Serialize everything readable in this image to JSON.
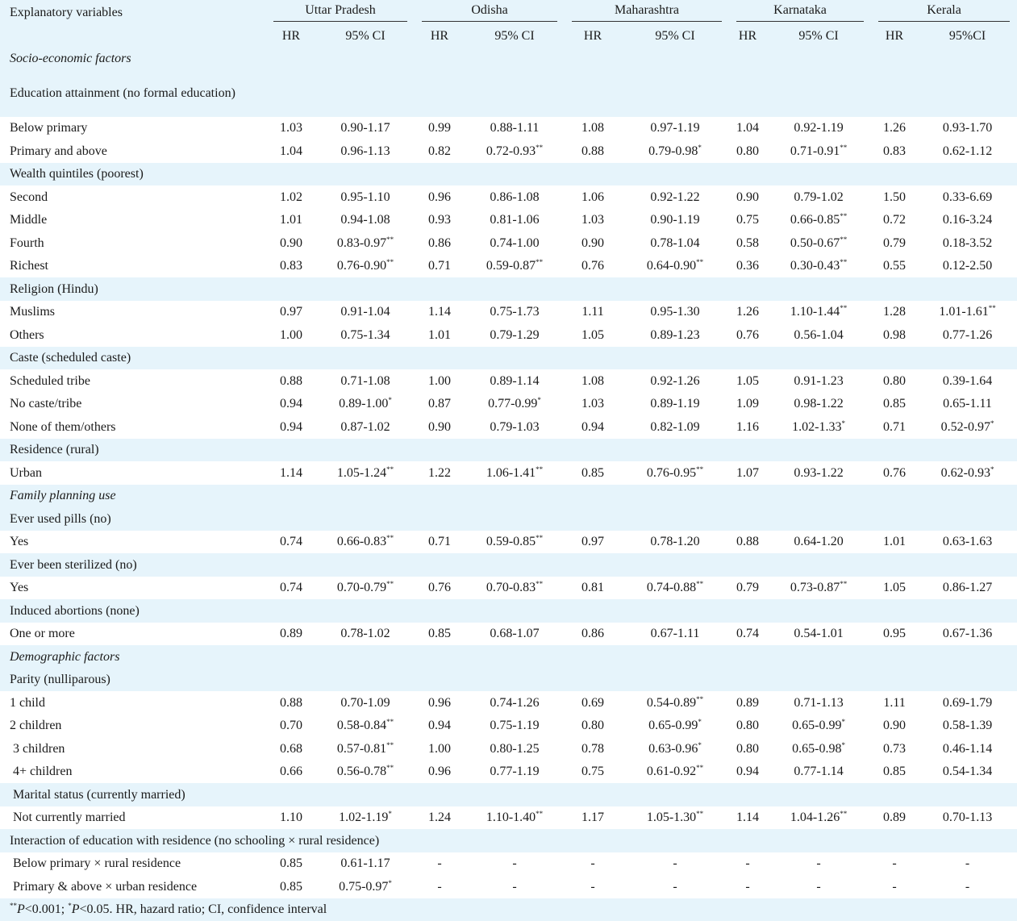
{
  "header": {
    "variables_label": "Explanatory variables",
    "states": [
      "Uttar Pradesh",
      "Odisha",
      "Maharashtra",
      "Karnataka",
      "Kerala"
    ],
    "sub_hr": "HR",
    "sub_ci": [
      "95% CI",
      "95% CI",
      "95% CI",
      "95% CI",
      "95%CI"
    ]
  },
  "rows": [
    {
      "type": "section",
      "label": "Socio-economic factors",
      "band": "blue"
    },
    {
      "type": "group",
      "label": "Education attainment (no formal education)",
      "band": "blue",
      "wrap": true
    },
    {
      "type": "data",
      "label": "Below primary",
      "band": "white",
      "cells": [
        [
          "1.03",
          "0.90-1.17",
          ""
        ],
        [
          "0.99",
          "0.88-1.11",
          ""
        ],
        [
          "1.08",
          "0.97-1.19",
          ""
        ],
        [
          "1.04",
          "0.92-1.19",
          ""
        ],
        [
          "1.26",
          "0.93-1.70",
          ""
        ]
      ]
    },
    {
      "type": "data",
      "label": "Primary and above",
      "band": "white",
      "cells": [
        [
          "1.04",
          "0.96-1.13",
          ""
        ],
        [
          "0.82",
          "0.72-0.93",
          "**"
        ],
        [
          "0.88",
          "0.79-0.98",
          "*"
        ],
        [
          "0.80",
          "0.71-0.91",
          "**"
        ],
        [
          "0.83",
          "0.62-1.12",
          ""
        ]
      ]
    },
    {
      "type": "group",
      "label": "Wealth quintiles (poorest)",
      "band": "blue"
    },
    {
      "type": "data",
      "label": "Second",
      "band": "white",
      "cells": [
        [
          "1.02",
          "0.95-1.10",
          ""
        ],
        [
          "0.96",
          "0.86-1.08",
          ""
        ],
        [
          "1.06",
          "0.92-1.22",
          ""
        ],
        [
          "0.90",
          "0.79-1.02",
          ""
        ],
        [
          "1.50",
          "0.33-6.69",
          ""
        ]
      ]
    },
    {
      "type": "data",
      "label": "Middle",
      "band": "white",
      "cells": [
        [
          "1.01",
          "0.94-1.08",
          ""
        ],
        [
          "0.93",
          "0.81-1.06",
          ""
        ],
        [
          "1.03",
          "0.90-1.19",
          ""
        ],
        [
          "0.75",
          "0.66-0.85",
          "**"
        ],
        [
          "0.72",
          "0.16-3.24",
          ""
        ]
      ]
    },
    {
      "type": "data",
      "label": "Fourth",
      "band": "white",
      "cells": [
        [
          "0.90",
          "0.83-0.97",
          "**"
        ],
        [
          "0.86",
          "0.74-1.00",
          ""
        ],
        [
          "0.90",
          "0.78-1.04",
          ""
        ],
        [
          "0.58",
          "0.50-0.67",
          "**"
        ],
        [
          "0.79",
          "0.18-3.52",
          ""
        ]
      ]
    },
    {
      "type": "data",
      "label": "Richest",
      "band": "white",
      "cells": [
        [
          "0.83",
          "0.76-0.90",
          "**"
        ],
        [
          "0.71",
          "0.59-0.87",
          "**"
        ],
        [
          "0.76",
          "0.64-0.90",
          "**"
        ],
        [
          "0.36",
          "0.30-0.43",
          "**"
        ],
        [
          "0.55",
          "0.12-2.50",
          ""
        ]
      ]
    },
    {
      "type": "group",
      "label": "Religion (Hindu)",
      "band": "blue"
    },
    {
      "type": "data",
      "label": "Muslims",
      "band": "white",
      "cells": [
        [
          "0.97",
          "0.91-1.04",
          ""
        ],
        [
          "1.14",
          "0.75-1.73",
          ""
        ],
        [
          "1.11",
          "0.95-1.30",
          ""
        ],
        [
          "1.26",
          "1.10-1.44",
          "**"
        ],
        [
          "1.28",
          "1.01-1.61",
          "**"
        ]
      ]
    },
    {
      "type": "data",
      "label": "Others",
      "band": "white",
      "cells": [
        [
          "1.00",
          "0.75-1.34",
          ""
        ],
        [
          "1.01",
          "0.79-1.29",
          ""
        ],
        [
          "1.05",
          "0.89-1.23",
          ""
        ],
        [
          "0.76",
          "0.56-1.04",
          ""
        ],
        [
          "0.98",
          "0.77-1.26",
          ""
        ]
      ]
    },
    {
      "type": "group",
      "label": "Caste (scheduled caste)",
      "band": "blue"
    },
    {
      "type": "data",
      "label": "Scheduled tribe",
      "band": "white",
      "cells": [
        [
          "0.88",
          "0.71-1.08",
          ""
        ],
        [
          "1.00",
          "0.89-1.14",
          ""
        ],
        [
          "1.08",
          "0.92-1.26",
          ""
        ],
        [
          "1.05",
          "0.91-1.23",
          ""
        ],
        [
          "0.80",
          "0.39-1.64",
          ""
        ]
      ]
    },
    {
      "type": "data",
      "label": "No caste/tribe",
      "band": "white",
      "cells": [
        [
          "0.94",
          "0.89-1.00",
          "*"
        ],
        [
          "0.87",
          "0.77-0.99",
          "*"
        ],
        [
          "1.03",
          "0.89-1.19",
          ""
        ],
        [
          "1.09",
          "0.98-1.22",
          ""
        ],
        [
          "0.85",
          "0.65-1.11",
          ""
        ]
      ]
    },
    {
      "type": "data",
      "label": "None of them/others",
      "band": "white",
      "cells": [
        [
          "0.94",
          "0.87-1.02",
          ""
        ],
        [
          "0.90",
          "0.79-1.03",
          ""
        ],
        [
          "0.94",
          "0.82-1.09",
          ""
        ],
        [
          "1.16",
          "1.02-1.33",
          "*"
        ],
        [
          "0.71",
          "0.52-0.97",
          "*"
        ]
      ]
    },
    {
      "type": "group",
      "label": "Residence (rural)",
      "band": "blue"
    },
    {
      "type": "data",
      "label": "Urban",
      "band": "white",
      "cells": [
        [
          "1.14",
          "1.05-1.24",
          "**"
        ],
        [
          "1.22",
          "1.06-1.41",
          "**"
        ],
        [
          "0.85",
          "0.76-0.95",
          "**"
        ],
        [
          "1.07",
          "0.93-1.22",
          ""
        ],
        [
          "0.76",
          "0.62-0.93",
          "*"
        ]
      ]
    },
    {
      "type": "section",
      "label": "Family planning use",
      "band": "blue"
    },
    {
      "type": "group",
      "label": "Ever used pills (no)",
      "band": "blue"
    },
    {
      "type": "data",
      "label": "Yes",
      "band": "white",
      "cells": [
        [
          "0.74",
          "0.66-0.83",
          "**"
        ],
        [
          "0.71",
          "0.59-0.85",
          "**"
        ],
        [
          "0.97",
          "0.78-1.20",
          ""
        ],
        [
          "0.88",
          "0.64-1.20",
          ""
        ],
        [
          "1.01",
          "0.63-1.63",
          ""
        ]
      ]
    },
    {
      "type": "group",
      "label": "Ever been sterilized (no)",
      "band": "blue"
    },
    {
      "type": "data",
      "label": "Yes",
      "band": "white",
      "cells": [
        [
          "0.74",
          "0.70-0.79",
          "**"
        ],
        [
          "0.76",
          "0.70-0.83",
          "**"
        ],
        [
          "0.81",
          "0.74-0.88",
          "**"
        ],
        [
          "0.79",
          "0.73-0.87",
          "**"
        ],
        [
          "1.05",
          "0.86-1.27",
          ""
        ]
      ]
    },
    {
      "type": "group",
      "label": "Induced abortions (none)",
      "band": "blue"
    },
    {
      "type": "data",
      "label": "One or more",
      "band": "white",
      "cells": [
        [
          "0.89",
          "0.78-1.02",
          ""
        ],
        [
          "0.85",
          "0.68-1.07",
          ""
        ],
        [
          "0.86",
          "0.67-1.11",
          ""
        ],
        [
          "0.74",
          "0.54-1.01",
          ""
        ],
        [
          "0.95",
          "0.67-1.36",
          ""
        ]
      ]
    },
    {
      "type": "section",
      "label": "Demographic factors",
      "band": "blue"
    },
    {
      "type": "group",
      "label": "Parity (nulliparous)",
      "band": "blue"
    },
    {
      "type": "data",
      "label": "1 child",
      "band": "white",
      "cells": [
        [
          "0.88",
          "0.70-1.09",
          ""
        ],
        [
          "0.96",
          "0.74-1.26",
          ""
        ],
        [
          "0.69",
          "0.54-0.89",
          "**"
        ],
        [
          "0.89",
          "0.71-1.13",
          ""
        ],
        [
          "1.11",
          "0.69-1.79",
          ""
        ]
      ]
    },
    {
      "type": "data",
      "label": "2 children",
      "band": "white",
      "cells": [
        [
          "0.70",
          "0.58-0.84",
          "**"
        ],
        [
          "0.94",
          "0.75-1.19",
          ""
        ],
        [
          "0.80",
          "0.65-0.99",
          "*"
        ],
        [
          "0.80",
          "0.65-0.99",
          "*"
        ],
        [
          "0.90",
          "0.58-1.39",
          ""
        ]
      ]
    },
    {
      "type": "data",
      "label": "3 children",
      "band": "white",
      "indent": true,
      "cells": [
        [
          "0.68",
          "0.57-0.81",
          "**"
        ],
        [
          "1.00",
          "0.80-1.25",
          ""
        ],
        [
          "0.78",
          "0.63-0.96",
          "*"
        ],
        [
          "0.80",
          "0.65-0.98",
          "*"
        ],
        [
          "0.73",
          "0.46-1.14",
          ""
        ]
      ]
    },
    {
      "type": "data",
      "label": "4+ children",
      "band": "white",
      "indent": true,
      "cells": [
        [
          "0.66",
          "0.56-0.78",
          "**"
        ],
        [
          "0.96",
          "0.77-1.19",
          ""
        ],
        [
          "0.75",
          "0.61-0.92",
          "**"
        ],
        [
          "0.94",
          "0.77-1.14",
          ""
        ],
        [
          "0.85",
          "0.54-1.34",
          ""
        ]
      ]
    },
    {
      "type": "group",
      "label": "Marital status (currently married)",
      "band": "blue",
      "indent": true
    },
    {
      "type": "data",
      "label": "Not currently married",
      "band": "white",
      "indent": true,
      "cells": [
        [
          "1.10",
          "1.02-1.19",
          "*"
        ],
        [
          "1.24",
          "1.10-1.40",
          "**"
        ],
        [
          "1.17",
          "1.05-1.30",
          "**"
        ],
        [
          "1.14",
          "1.04-1.26",
          "**"
        ],
        [
          "0.89",
          "0.70-1.13",
          ""
        ]
      ]
    },
    {
      "type": "group",
      "label": "Interaction of education with residence (no schooling × rural residence)",
      "band": "blue",
      "span": true,
      "flush": true
    },
    {
      "type": "data",
      "label": "Below primary × rural residence",
      "band": "white",
      "indent": true,
      "cells": [
        [
          "0.85",
          "0.61-1.17",
          ""
        ],
        [
          "-",
          "-",
          ""
        ],
        [
          "-",
          "-",
          ""
        ],
        [
          "-",
          "-",
          ""
        ],
        [
          "-",
          "-",
          ""
        ]
      ]
    },
    {
      "type": "data",
      "label": "Primary & above × urban residence",
      "band": "white",
      "indent": true,
      "cells": [
        [
          "0.85",
          "0.75-0.97",
          "*"
        ],
        [
          "-",
          "-",
          ""
        ],
        [
          "-",
          "-",
          ""
        ],
        [
          "-",
          "-",
          ""
        ],
        [
          "-",
          "-",
          ""
        ]
      ]
    }
  ],
  "footnote": {
    "sig_double": "**",
    "p_label": "P",
    "text1": "<0.001; ",
    "sig_single": "*",
    "text2": "<0.05. HR, hazard ratio; CI, confidence interval"
  }
}
